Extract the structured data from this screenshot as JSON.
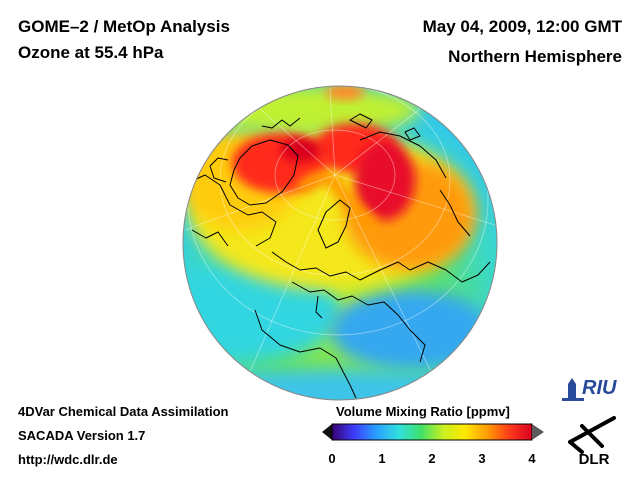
{
  "header": {
    "title_line1": "GOME–2 / MetOp Analysis",
    "title_line2": "Ozone at 55.4 hPa",
    "date_time": "May 04, 2009, 12:00 GMT",
    "region": "Northern Hemisphere"
  },
  "footer": {
    "line1": "4DVar Chemical Data Assimilation",
    "line2": "SACADA Version 1.7",
    "line3": "http://wdc.dlr.de"
  },
  "colorbar": {
    "title": "Volume Mixing Ratio [ppmv]",
    "ticks": [
      "0",
      "1",
      "2",
      "3",
      "4"
    ],
    "range": [
      0,
      4
    ],
    "colors": [
      "#3a0070",
      "#3c3cff",
      "#2aa0ff",
      "#30e0e0",
      "#3ee06a",
      "#c8f020",
      "#ffe800",
      "#ff9a00",
      "#ff3a1a",
      "#d80020"
    ]
  },
  "logos": {
    "riu": "RIU",
    "dlr": "DLR"
  },
  "map": {
    "projection": "orthographic",
    "hemisphere": "Northern Hemisphere",
    "variable": "ozone volume mixing ratio"
  }
}
